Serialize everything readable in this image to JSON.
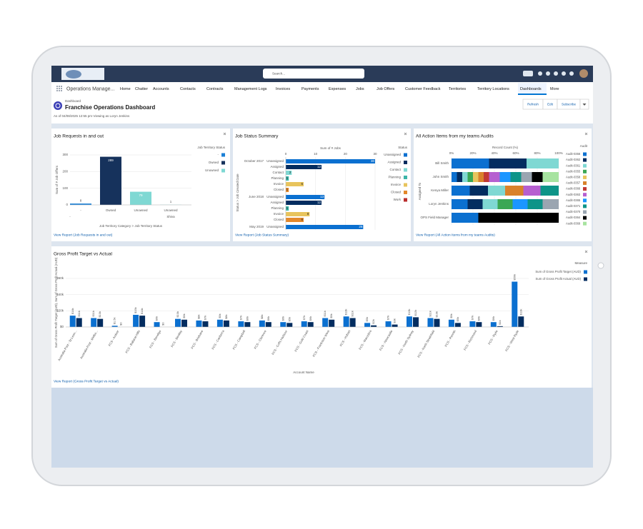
{
  "top_bar": {
    "search_placeholder": "Search..."
  },
  "nav": {
    "app_name": "Operations Manage...",
    "tabs": [
      "Home",
      "Chatter",
      "Accounts",
      "Contacts",
      "Contracts",
      "Management Logs",
      "Invoices",
      "Payments",
      "Expenses",
      "Jobs",
      "Job Offers",
      "Customer Feedback",
      "Territories",
      "Territory Locations",
      "Dashboards",
      "More"
    ],
    "selected": "Dashboards"
  },
  "header": {
    "object_type": "Dashboard",
    "title": "Franchise Operations Dashboard",
    "subtitle": "As of 04/08/2025 12:55 pm·Viewing as Loryn Jenkins",
    "buttons": [
      "Refresh",
      "Edit",
      "Subscribe"
    ]
  },
  "chart_data": [
    {
      "type": "bar",
      "title": "Job Requests in and out",
      "y_label": "Sum of # Job Offers",
      "x_label": "Job Territory Category > Job Territory Status",
      "ylim": [
        0,
        300
      ],
      "yticks": [
        0,
        100,
        200,
        300
      ],
      "groups": [
        {
          "label": "-",
          "statuses": [
            "-",
            "Owned",
            "Unowned"
          ],
          "values": [
            8,
            289,
            79
          ]
        },
        {
          "label": "Shiva",
          "statuses": [
            "Unowned"
          ],
          "values": [
            1
          ]
        }
      ],
      "legend": {
        "title": "Job Territory Status",
        "items": [
          {
            "name": "-",
            "color": "#1b7fd6"
          },
          {
            "name": "Owned",
            "color": "#16325c"
          },
          {
            "name": "Unowned",
            "color": "#7fd8d3"
          }
        ]
      },
      "footer_link": "View Report (Job Requests in and out)"
    },
    {
      "type": "hbar",
      "title": "Job Status Summary",
      "x_label": "Sum of # Jobs",
      "y_label": "Status > Job Created Date",
      "xlim": [
        0,
        30
      ],
      "xticks": [
        0,
        10,
        20,
        30
      ],
      "groups": [
        {
          "label": "October 2017",
          "categories": [
            "Unassigned",
            "Assigned",
            "Contact",
            "Planning",
            "Invoice",
            "Closed"
          ],
          "values": [
            30,
            12,
            2,
            1,
            6,
            1
          ]
        },
        {
          "label": "June 2018",
          "categories": [
            "Unassigned",
            "Assigned",
            "Planning",
            "Invoice",
            "Closed"
          ],
          "values": [
            13,
            12,
            1,
            8,
            6
          ]
        },
        {
          "label": "May 2019",
          "categories": [
            "Unassigned"
          ],
          "values": [
            26
          ]
        }
      ],
      "legend": {
        "title": "Status",
        "items": [
          {
            "name": "Unassigned",
            "color": "#0b70d0"
          },
          {
            "name": "Assigned",
            "color": "#032d60"
          },
          {
            "name": "Contact",
            "color": "#7fd8d3"
          },
          {
            "name": "Planning",
            "color": "#3bb5a8"
          },
          {
            "name": "Invoice",
            "color": "#e8c45c"
          },
          {
            "name": "Closed",
            "color": "#e3892c"
          },
          {
            "name": "Work",
            "color": "#ba2c2c"
          }
        ]
      },
      "footer_link": "View Report (Job Status Summary)"
    },
    {
      "type": "stacked_hbar_percent",
      "title": "All Action Items from my teams Audits",
      "x_label": "Record Count (%)",
      "y_label": "Assigned To",
      "legend_title": "Audit",
      "xlim": [
        0,
        100
      ],
      "xticks": [
        {
          "value": 0,
          "label": "0%"
        },
        {
          "value": 20,
          "label": "20%"
        },
        {
          "value": 40,
          "label": "40%"
        },
        {
          "value": 60,
          "label": "60%"
        },
        {
          "value": 80,
          "label": "80%"
        },
        {
          "value": 100,
          "label": "100%"
        }
      ],
      "categories": [
        "Bill Smith",
        "John Smith",
        "Kenya Miller",
        "Loryn Jenkins",
        "OPS Field Manager"
      ],
      "series": [
        {
          "name": "Audit-0356",
          "color": "#0b70d0",
          "values": [
            35,
            5,
            17,
            15,
            25
          ]
        },
        {
          "name": "Audit-0362",
          "color": "#032d60",
          "values": [
            35,
            5,
            17,
            14,
            0
          ]
        },
        {
          "name": "Audit-0361",
          "color": "#7fd8d3",
          "values": [
            30,
            5,
            16,
            14,
            0
          ]
        },
        {
          "name": "Audit-0355",
          "color": "#3ba755",
          "values": [
            0,
            5,
            0,
            14,
            0
          ]
        },
        {
          "name": "Audit-0358",
          "color": "#e8c45c",
          "values": [
            0,
            5,
            0,
            0,
            0
          ]
        },
        {
          "name": "Audit-0357",
          "color": "#d9822b",
          "values": [
            0,
            5,
            17,
            0,
            0
          ]
        },
        {
          "name": "Audit-0366",
          "color": "#c23934",
          "values": [
            0,
            5,
            0,
            0,
            0
          ]
        },
        {
          "name": "Audit-0363",
          "color": "#b65fd0",
          "values": [
            0,
            10,
            16,
            0,
            0
          ]
        },
        {
          "name": "Audit-0365",
          "color": "#1b96ff",
          "values": [
            0,
            10,
            0,
            14,
            0
          ]
        },
        {
          "name": "Audit-0371",
          "color": "#0d9488",
          "values": [
            0,
            10,
            17,
            14,
            0
          ]
        },
        {
          "name": "Audit-0370",
          "color": "#9aa5b1",
          "values": [
            0,
            10,
            0,
            15,
            0
          ]
        },
        {
          "name": "Audit-0364",
          "color": "#000000",
          "values": [
            0,
            10,
            0,
            0,
            75
          ]
        },
        {
          "name": "Audit-0369",
          "color": "#a7e3a0",
          "values": [
            0,
            15,
            0,
            0,
            0
          ]
        }
      ],
      "footer_link": "View Report (All Action Items from my teams Audits)"
    },
    {
      "type": "grouped_bar",
      "title": "Gross Profit Target vs Actual",
      "y_label": "Sum of Gross Profit Target (AUD), Sum of Gross Profit Actual (AUD)",
      "x_label": "Account Name",
      "legend_title": "Measure",
      "ylim": [
        0,
        60000
      ],
      "yticks": [
        {
          "value": 0,
          "label": "$0"
        },
        {
          "value": 20000,
          "label": "$20k"
        },
        {
          "value": 40000,
          "label": "$40k"
        },
        {
          "value": 60000,
          "label": "$60k"
        }
      ],
      "categories": [
        "Australia Post - St Leon...",
        "Australia Post - Melbo...",
        "FCS - Ardeer",
        "FCS - Ballarat Hills",
        "FCS - Bendigo",
        "FCS - Bentley",
        "FCS - Brisbane",
        "FCS - Canberra",
        "FCS - Campbell",
        "FCS - Clarence",
        "FCS - Coffs Harbour",
        "FCS - Gold Coast",
        "FCS - Frankston West",
        "FCS - Hobart",
        "FCS - Maroubra",
        "FCS - Newcastle",
        "FCS - North Sydney",
        "FCS - North Strathfield",
        "FCS - Penrith",
        "FCS - Richmond",
        "FCS - Ryde",
        "FCS - West Ryde"
      ],
      "series": [
        {
          "name": "Sum of Gross Profit Target (AUD)",
          "color": "#0b70d0",
          "values": [
            14000,
            11000,
            1500,
            15000,
            6000,
            10000,
            8000,
            9000,
            7000,
            8000,
            6000,
            7000,
            11000,
            13000,
            5000,
            7000,
            13000,
            11000,
            9000,
            7000,
            6000,
            56000
          ],
          "value_labels": [
            "$14k",
            "$11k",
            "$1.5k",
            "$15k",
            "$6k",
            "$10k",
            "$8k",
            "$9k",
            "$7k",
            "$8k",
            "$6k",
            "$7k",
            "$11k",
            "$13k",
            "$5k",
            "$7k",
            "$13k",
            "$11k",
            "$9k",
            "$7k",
            "$6k",
            "$56k"
          ]
        },
        {
          "name": "Sum of Gross Profit Actual (AUD)",
          "color": "#032d60",
          "values": [
            11000,
            10000,
            0,
            14000,
            0,
            9000,
            7000,
            8000,
            6000,
            6000,
            5000,
            6000,
            9000,
            11000,
            2000,
            3000,
            12000,
            10000,
            5000,
            6000,
            1000,
            13000
          ],
          "value_labels": [
            "$11k",
            "$10k",
            "$0",
            "$14k",
            "$0",
            "$9k",
            "$7k",
            "$8k",
            "$6k",
            "$6k",
            "$5k",
            "$6k",
            "$9k",
            "$11k",
            "$2k",
            "$3k",
            "$12k",
            "$10k",
            "$5k",
            "$6k",
            "$1k",
            "$13k"
          ]
        }
      ],
      "footer_link": "View Report (Gross Profit Target vs Actual)"
    }
  ]
}
